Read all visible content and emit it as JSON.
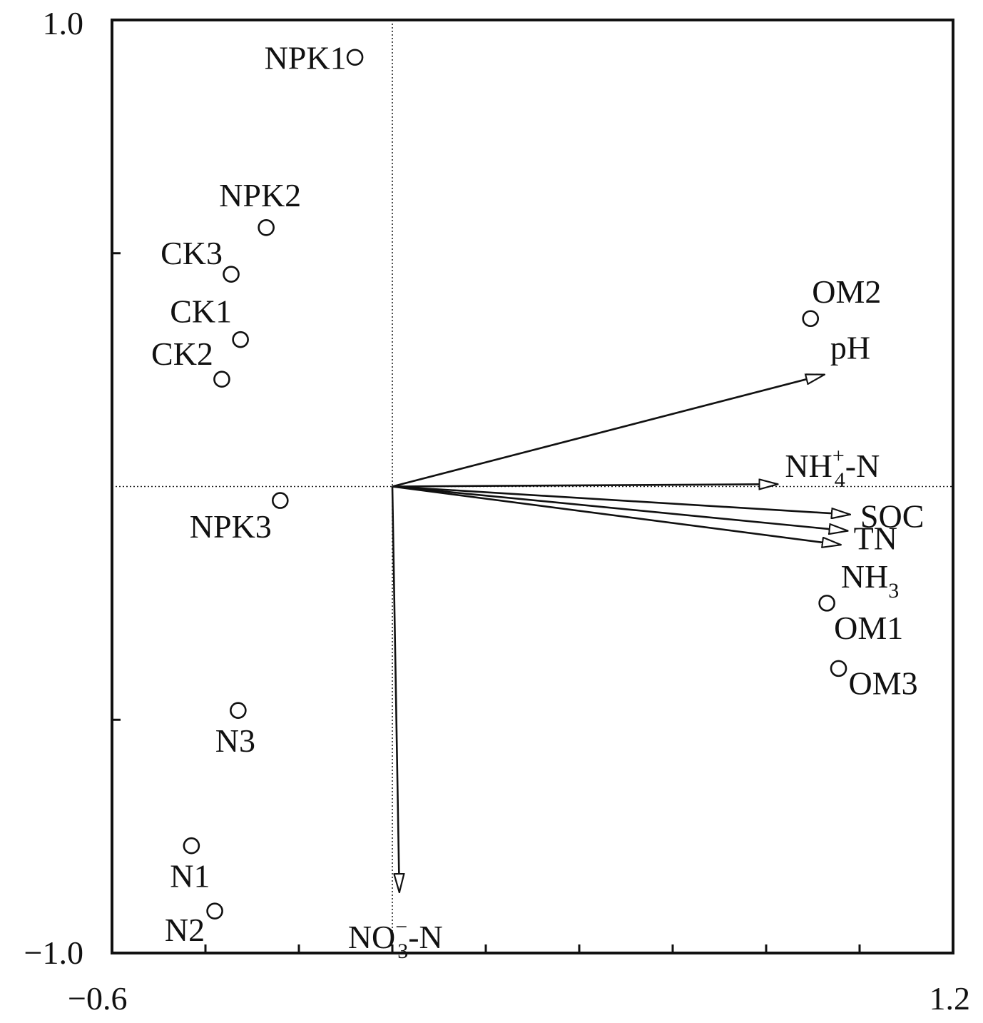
{
  "chart_data": {
    "type": "scatter",
    "subtype": "rda-biplot",
    "title": "",
    "xlabel": "",
    "ylabel": "",
    "xlim": [
      -0.6,
      1.2
    ],
    "ylim": [
      -1.0,
      1.0
    ],
    "x_tick_labels": [
      {
        "value": -0.6,
        "label": "−0.6"
      },
      {
        "value": 1.2,
        "label": "1.2"
      }
    ],
    "y_tick_labels": [
      {
        "value": 1.0,
        "label": "1.0"
      },
      {
        "value": -1.0,
        "label": "−1.0"
      }
    ],
    "x_ticks": [
      -0.4,
      -0.2,
      0.0,
      0.2,
      0.4,
      0.6,
      0.8,
      1.0
    ],
    "y_ticks": [
      0.5,
      -0.5
    ],
    "reference_lines": {
      "x": 0.0,
      "y": 0.0,
      "style": "dotted"
    },
    "points": [
      {
        "name": "NPK1",
        "label": "NPK1",
        "x": -0.08,
        "y": 0.92
      },
      {
        "name": "NPK2",
        "label": "NPK2",
        "x": -0.27,
        "y": 0.555
      },
      {
        "name": "CK3",
        "label": "CK3",
        "x": -0.345,
        "y": 0.455
      },
      {
        "name": "CK1",
        "label": "CK1",
        "x": -0.325,
        "y": 0.315
      },
      {
        "name": "CK2",
        "label": "CK2",
        "x": -0.365,
        "y": 0.23
      },
      {
        "name": "NPK3",
        "label": "NPK3",
        "x": -0.24,
        "y": -0.03
      },
      {
        "name": "N3",
        "label": "N3",
        "x": -0.33,
        "y": -0.48
      },
      {
        "name": "N1",
        "label": "N1",
        "x": -0.43,
        "y": -0.77
      },
      {
        "name": "N2",
        "label": "N2",
        "x": -0.38,
        "y": -0.91
      },
      {
        "name": "OM2",
        "label": "OM2",
        "x": 0.895,
        "y": 0.36
      },
      {
        "name": "OM1",
        "label": "OM1",
        "x": 0.93,
        "y": -0.25
      },
      {
        "name": "OM3",
        "label": "OM3",
        "x": 0.955,
        "y": -0.39
      }
    ],
    "arrows": [
      {
        "name": "pH",
        "label": "pH",
        "x": 0.925,
        "y": 0.24
      },
      {
        "name": "NH4+-N",
        "label": "NH4+-N",
        "label_base": "NH",
        "label_sub": "4",
        "label_sup": "+",
        "label_tail": "-N",
        "x": 0.825,
        "y": 0.005
      },
      {
        "name": "SOC",
        "label": "SOC",
        "x": 0.98,
        "y": -0.06
      },
      {
        "name": "TN",
        "label": "TN",
        "x": 0.975,
        "y": -0.095
      },
      {
        "name": "NH3",
        "label": "NH3",
        "label_base": "NH",
        "label_sub": "3",
        "label_sup": "",
        "label_tail": "",
        "x": 0.96,
        "y": -0.125
      },
      {
        "name": "NO3--N",
        "label": "NO3--N",
        "label_base": "NO",
        "label_sub": "3",
        "label_sup": "−",
        "label_tail": "-N",
        "x": 0.015,
        "y": -0.87
      }
    ]
  }
}
